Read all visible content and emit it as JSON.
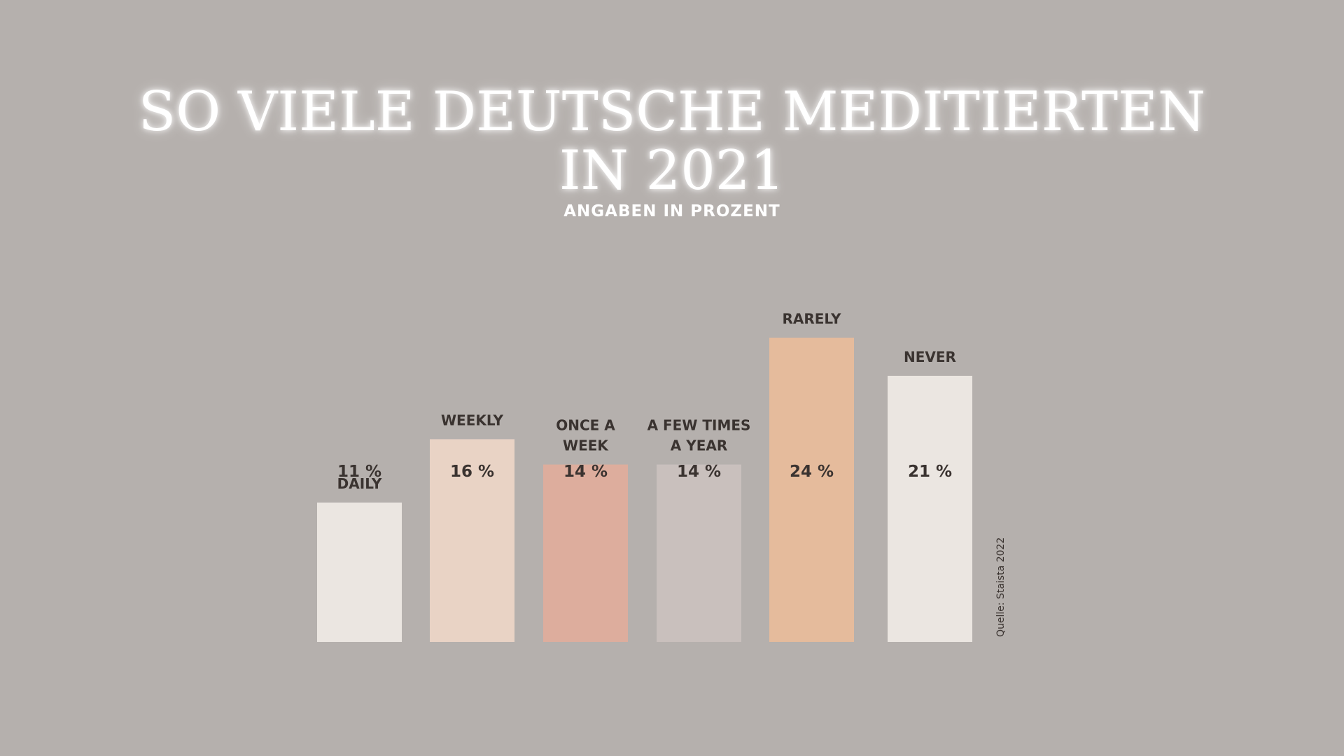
{
  "chart_data": {
    "type": "bar",
    "title": "SO VIELE DEUTSCHE MEDITIERTEN IN 2021",
    "subtitle": "ANGABEN IN PROZENT",
    "source": "Quelle: Staista 2022",
    "categories": [
      "DAILY",
      "WEEKLY",
      "ONCE A WEEK",
      "A FEW TIMES A YEAR",
      "RARELY",
      "NEVER"
    ],
    "category_lines": [
      [
        "DAILY"
      ],
      [
        "WEEKLY"
      ],
      [
        "ONCE A",
        "WEEK"
      ],
      [
        "A FEW TIMES",
        "A YEAR"
      ],
      [
        "RARELY"
      ],
      [
        "NEVER"
      ]
    ],
    "values": [
      11,
      16,
      14,
      14,
      24,
      21
    ],
    "value_labels": [
      "11 %",
      "16 %",
      "14 %",
      "14 %",
      "24 %",
      "21 %"
    ],
    "colors": [
      "#ebe6e1",
      "#e9d3c5",
      "#ddad9d",
      "#c9c0bd",
      "#e5bb9c",
      "#ebe6e1"
    ],
    "xlabel": "",
    "ylabel": "",
    "legend": "none",
    "grid": false
  }
}
